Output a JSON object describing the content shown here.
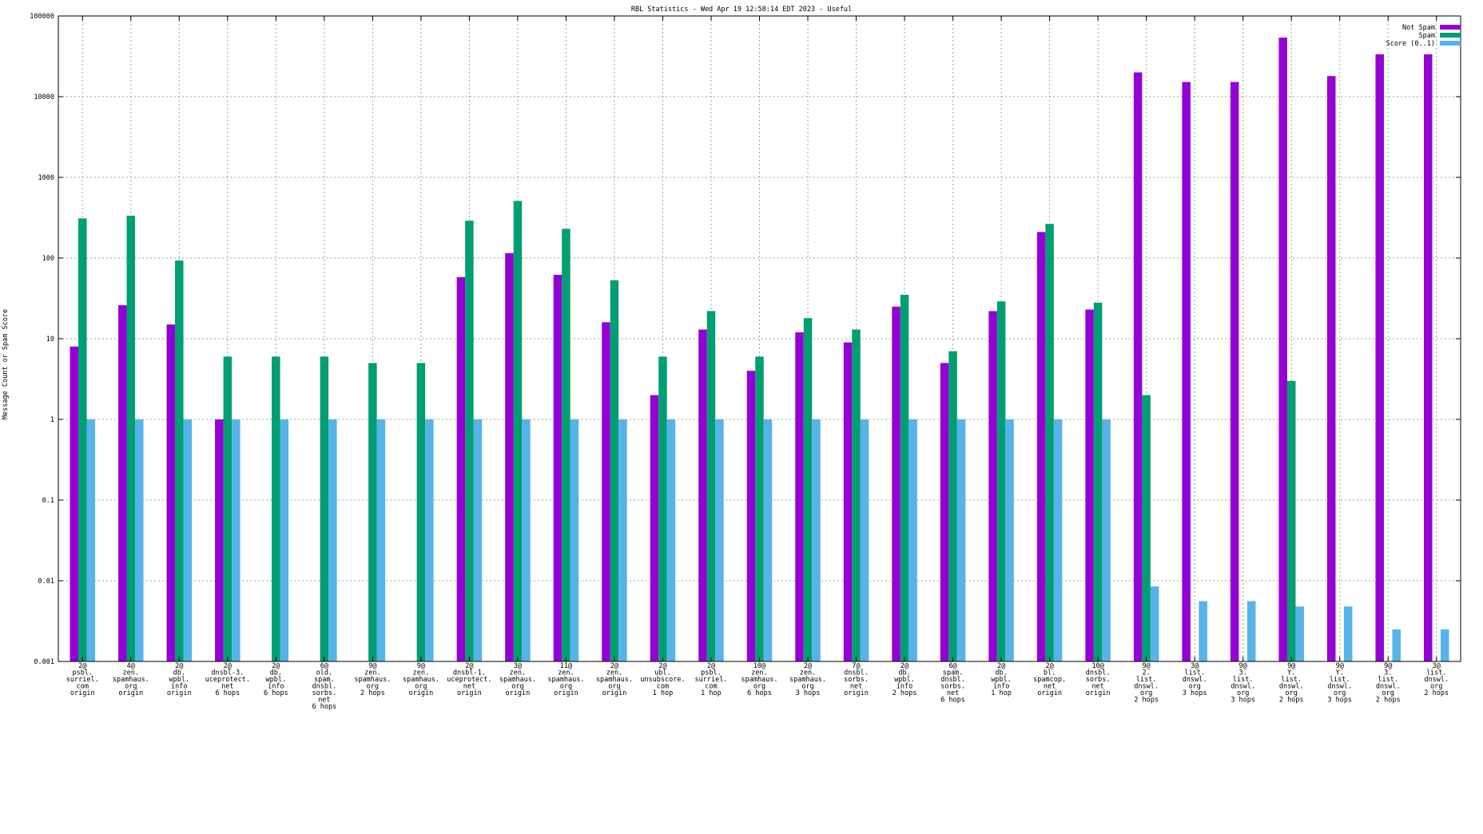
{
  "chart_data": {
    "type": "bar",
    "title": "RBL Statistics - Wed Apr 19 12:58:14 EDT 2023 - Useful",
    "xlabel": "",
    "ylabel": "Message Count or Spam Score",
    "yscale": "log",
    "ylim": [
      0.001,
      100000
    ],
    "yticks": [
      "0.001",
      "0.01",
      "0.1",
      "1",
      "10",
      "100",
      "1000",
      "10000",
      "100000"
    ],
    "ytick_values": [
      0.001,
      0.01,
      0.1,
      1,
      10,
      100,
      1000,
      10000,
      100000
    ],
    "grid": true,
    "legend_position": "top-right",
    "categories": [
      [
        "2@",
        "psbl.",
        "surriel.",
        "com",
        "origin"
      ],
      [
        "4@",
        "zen.",
        "spamhaus.",
        "org",
        "origin"
      ],
      [
        "2@",
        "db.",
        "wpbl.",
        "info",
        "origin"
      ],
      [
        "2@",
        "dnsbl-3.",
        "uceprotect.",
        "net",
        "6 hops"
      ],
      [
        "2@",
        "db.",
        "wpbl.",
        "info",
        "6 hops"
      ],
      [
        "6@",
        "old.",
        "spam.",
        "dnsbl.",
        "sorbs.",
        "net",
        "6 hops"
      ],
      [
        "9@",
        "zen.",
        "spamhaus.",
        "org",
        "2 hops"
      ],
      [
        "9@",
        "zen.",
        "spamhaus.",
        "org",
        "origin"
      ],
      [
        "2@",
        "dnsbl-1.",
        "uceprotect.",
        "net",
        "origin"
      ],
      [
        "3@",
        "zen.",
        "spamhaus.",
        "org",
        "origin"
      ],
      [
        "11@",
        "zen.",
        "spamhaus.",
        "org",
        "origin"
      ],
      [
        "2@",
        "zen.",
        "spamhaus.",
        "org",
        "origin"
      ],
      [
        "2@",
        "ubl.",
        "unsubscore.",
        "com",
        "1 hop"
      ],
      [
        "2@",
        "psbl.",
        "surriel.",
        "com",
        "1 hop"
      ],
      [
        "10@",
        "zen.",
        "spamhaus.",
        "org",
        "6 hops"
      ],
      [
        "2@",
        "zen.",
        "spamhaus.",
        "org",
        "3 hops"
      ],
      [
        "7@",
        "dnsbl.",
        "sorbs.",
        "net",
        "origin"
      ],
      [
        "2@",
        "db.",
        "wpbl.",
        "info",
        "2 hops"
      ],
      [
        "6@",
        "spam.",
        "dnsbl.",
        "sorbs.",
        "net",
        "6 hops"
      ],
      [
        "2@",
        "db.",
        "wpbl.",
        "info",
        "1 hop"
      ],
      [
        "2@",
        "bl.",
        "spamcop.",
        "net",
        "origin"
      ],
      [
        "10@",
        "dnsbl.",
        "sorbs.",
        "net",
        "origin"
      ],
      [
        "9@",
        "2.",
        "list.",
        "dnswl.",
        "org",
        "2 hops"
      ],
      [
        "3@",
        "list.",
        "dnswl.",
        "org",
        "3 hops"
      ],
      [
        "9@",
        "3.",
        "list.",
        "dnswl.",
        "org",
        "3 hops"
      ],
      [
        "9@",
        "Y.",
        "list.",
        "dnswl.",
        "org",
        "2 hops"
      ],
      [
        "9@",
        "Y.",
        "list.",
        "dnswl.",
        "org",
        "3 hops"
      ],
      [
        "9@",
        "3.",
        "list.",
        "dnswl.",
        "org",
        "2 hops"
      ],
      [
        "3@",
        "list.",
        "dnswl.",
        "org",
        "2 hops"
      ]
    ],
    "series": [
      {
        "name": "Not Spam",
        "color": "#9400d3",
        "values": [
          8,
          26,
          15,
          1,
          null,
          null,
          null,
          null,
          58,
          115,
          62,
          16,
          2,
          13,
          4,
          12,
          9,
          25,
          5,
          22,
          210,
          23,
          20000,
          15200,
          15200,
          54000,
          18000,
          33500,
          33500
        ]
      },
      {
        "name": "Spam",
        "color": "#009e73",
        "values": [
          310,
          335,
          93,
          6,
          6,
          6,
          5,
          5,
          290,
          510,
          230,
          53,
          6,
          22,
          6,
          18,
          13,
          35,
          7,
          29,
          265,
          28,
          2,
          null,
          null,
          3,
          null,
          null,
          null
        ]
      },
      {
        "name": "Score (0..1)",
        "color": "#56b4e9",
        "values": [
          1,
          1,
          1,
          1,
          1,
          1,
          1,
          1,
          1,
          1,
          1,
          1,
          1,
          1,
          1,
          1,
          1,
          1,
          1,
          1,
          1,
          1,
          0.0085,
          0.0056,
          0.0056,
          0.0048,
          0.0048,
          0.0025,
          0.0025
        ]
      }
    ]
  }
}
